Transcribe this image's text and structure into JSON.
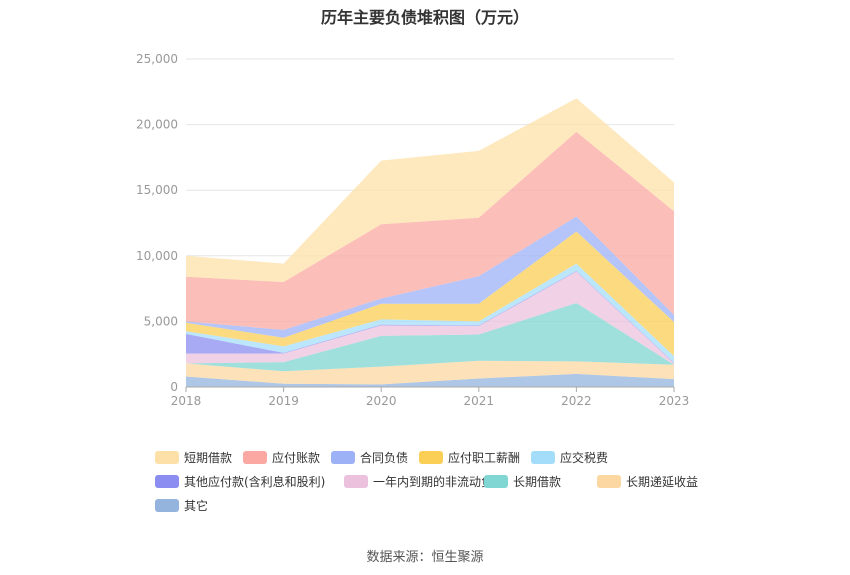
{
  "title": "历年主要负债堆积图（万元）",
  "source": "数据来源：恒生聚源",
  "chart_data": {
    "type": "area",
    "stacked": true,
    "categories": [
      "2018",
      "2019",
      "2020",
      "2021",
      "2022",
      "2023"
    ],
    "ylim": [
      0,
      25000
    ],
    "yticks": [
      0,
      5000,
      10000,
      15000,
      20000,
      25000
    ],
    "ytick_labels": [
      "0",
      "5,000",
      "10,000",
      "15,000",
      "20,000",
      "25,000"
    ],
    "grid": true,
    "legend_position": "bottom",
    "series": [
      {
        "name": "其它",
        "color": "#94b4de",
        "values": [
          800,
          250,
          200,
          650,
          1000,
          600
        ]
      },
      {
        "name": "长期递延收益",
        "color": "#fcd7a1",
        "values": [
          1000,
          950,
          1350,
          1350,
          950,
          1100
        ]
      },
      {
        "name": "长期借款",
        "color": "#7fd6d2",
        "values": [
          0,
          700,
          2350,
          2000,
          4450,
          0
        ]
      },
      {
        "name": "一年内到期的非流动负债",
        "color": "#ebc1de",
        "values": [
          750,
          650,
          800,
          650,
          2400,
          100
        ]
      },
      {
        "name": "其他应付款(含利息和股利)",
        "color": "#8b8ef0",
        "values": [
          1500,
          50,
          50,
          50,
          50,
          50
        ]
      },
      {
        "name": "应交税费",
        "color": "#a4ddf9",
        "values": [
          200,
          500,
          400,
          300,
          550,
          500
        ]
      },
      {
        "name": "应付职工薪酬",
        "color": "#fbcf55",
        "values": [
          650,
          650,
          1200,
          1350,
          2450,
          2600
        ]
      },
      {
        "name": "合同负债",
        "color": "#9db1f7",
        "values": [
          100,
          600,
          400,
          2100,
          1150,
          550
        ]
      },
      {
        "name": "应付账款",
        "color": "#fba8a2",
        "values": [
          3400,
          3650,
          5650,
          4450,
          6450,
          7900
        ]
      },
      {
        "name": "短期借款",
        "color": "#fde0a8",
        "values": [
          1600,
          1400,
          4850,
          5100,
          2550,
          2200
        ]
      }
    ],
    "legend_order": [
      "短期借款",
      "应付账款",
      "合同负债",
      "应付职工薪酬",
      "应交税费",
      "其他应付款(含利息和股利)",
      "一年内到期的非流动负债",
      "长期借款",
      "长期递延收益",
      "其它"
    ]
  }
}
